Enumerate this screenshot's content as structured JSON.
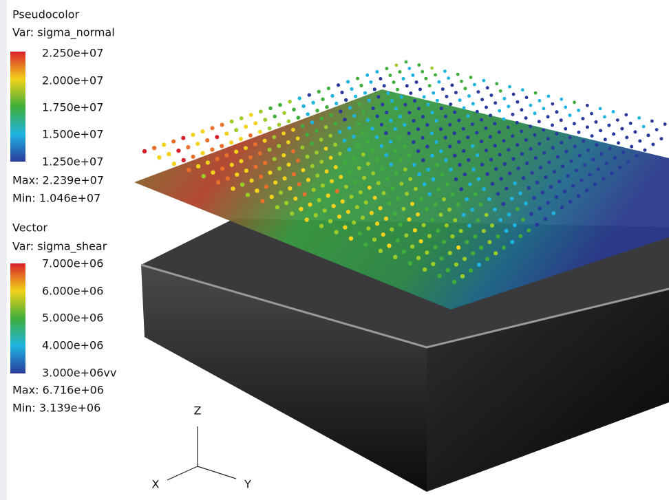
{
  "pseudocolor_legend": {
    "title": "Pseudocolor",
    "variable": "Var: sigma_normal",
    "labels": [
      "2.250e+07",
      "2.000e+07",
      "1.750e+07",
      "1.500e+07",
      "1.250e+07"
    ],
    "max": "Max: 2.239e+07",
    "min": "Min: 1.046e+07"
  },
  "vector_legend": {
    "title": "Vector",
    "variable": "Var: sigma_shear",
    "labels": [
      "7.000e+06",
      "6.000e+06",
      "5.000e+06",
      "4.000e+06",
      "3.000e+06vv"
    ],
    "max": "Max: 6.716e+06",
    "min": "Min: 3.139e+06"
  },
  "axes": {
    "x": "X",
    "y": "Y",
    "z": "Z"
  }
}
